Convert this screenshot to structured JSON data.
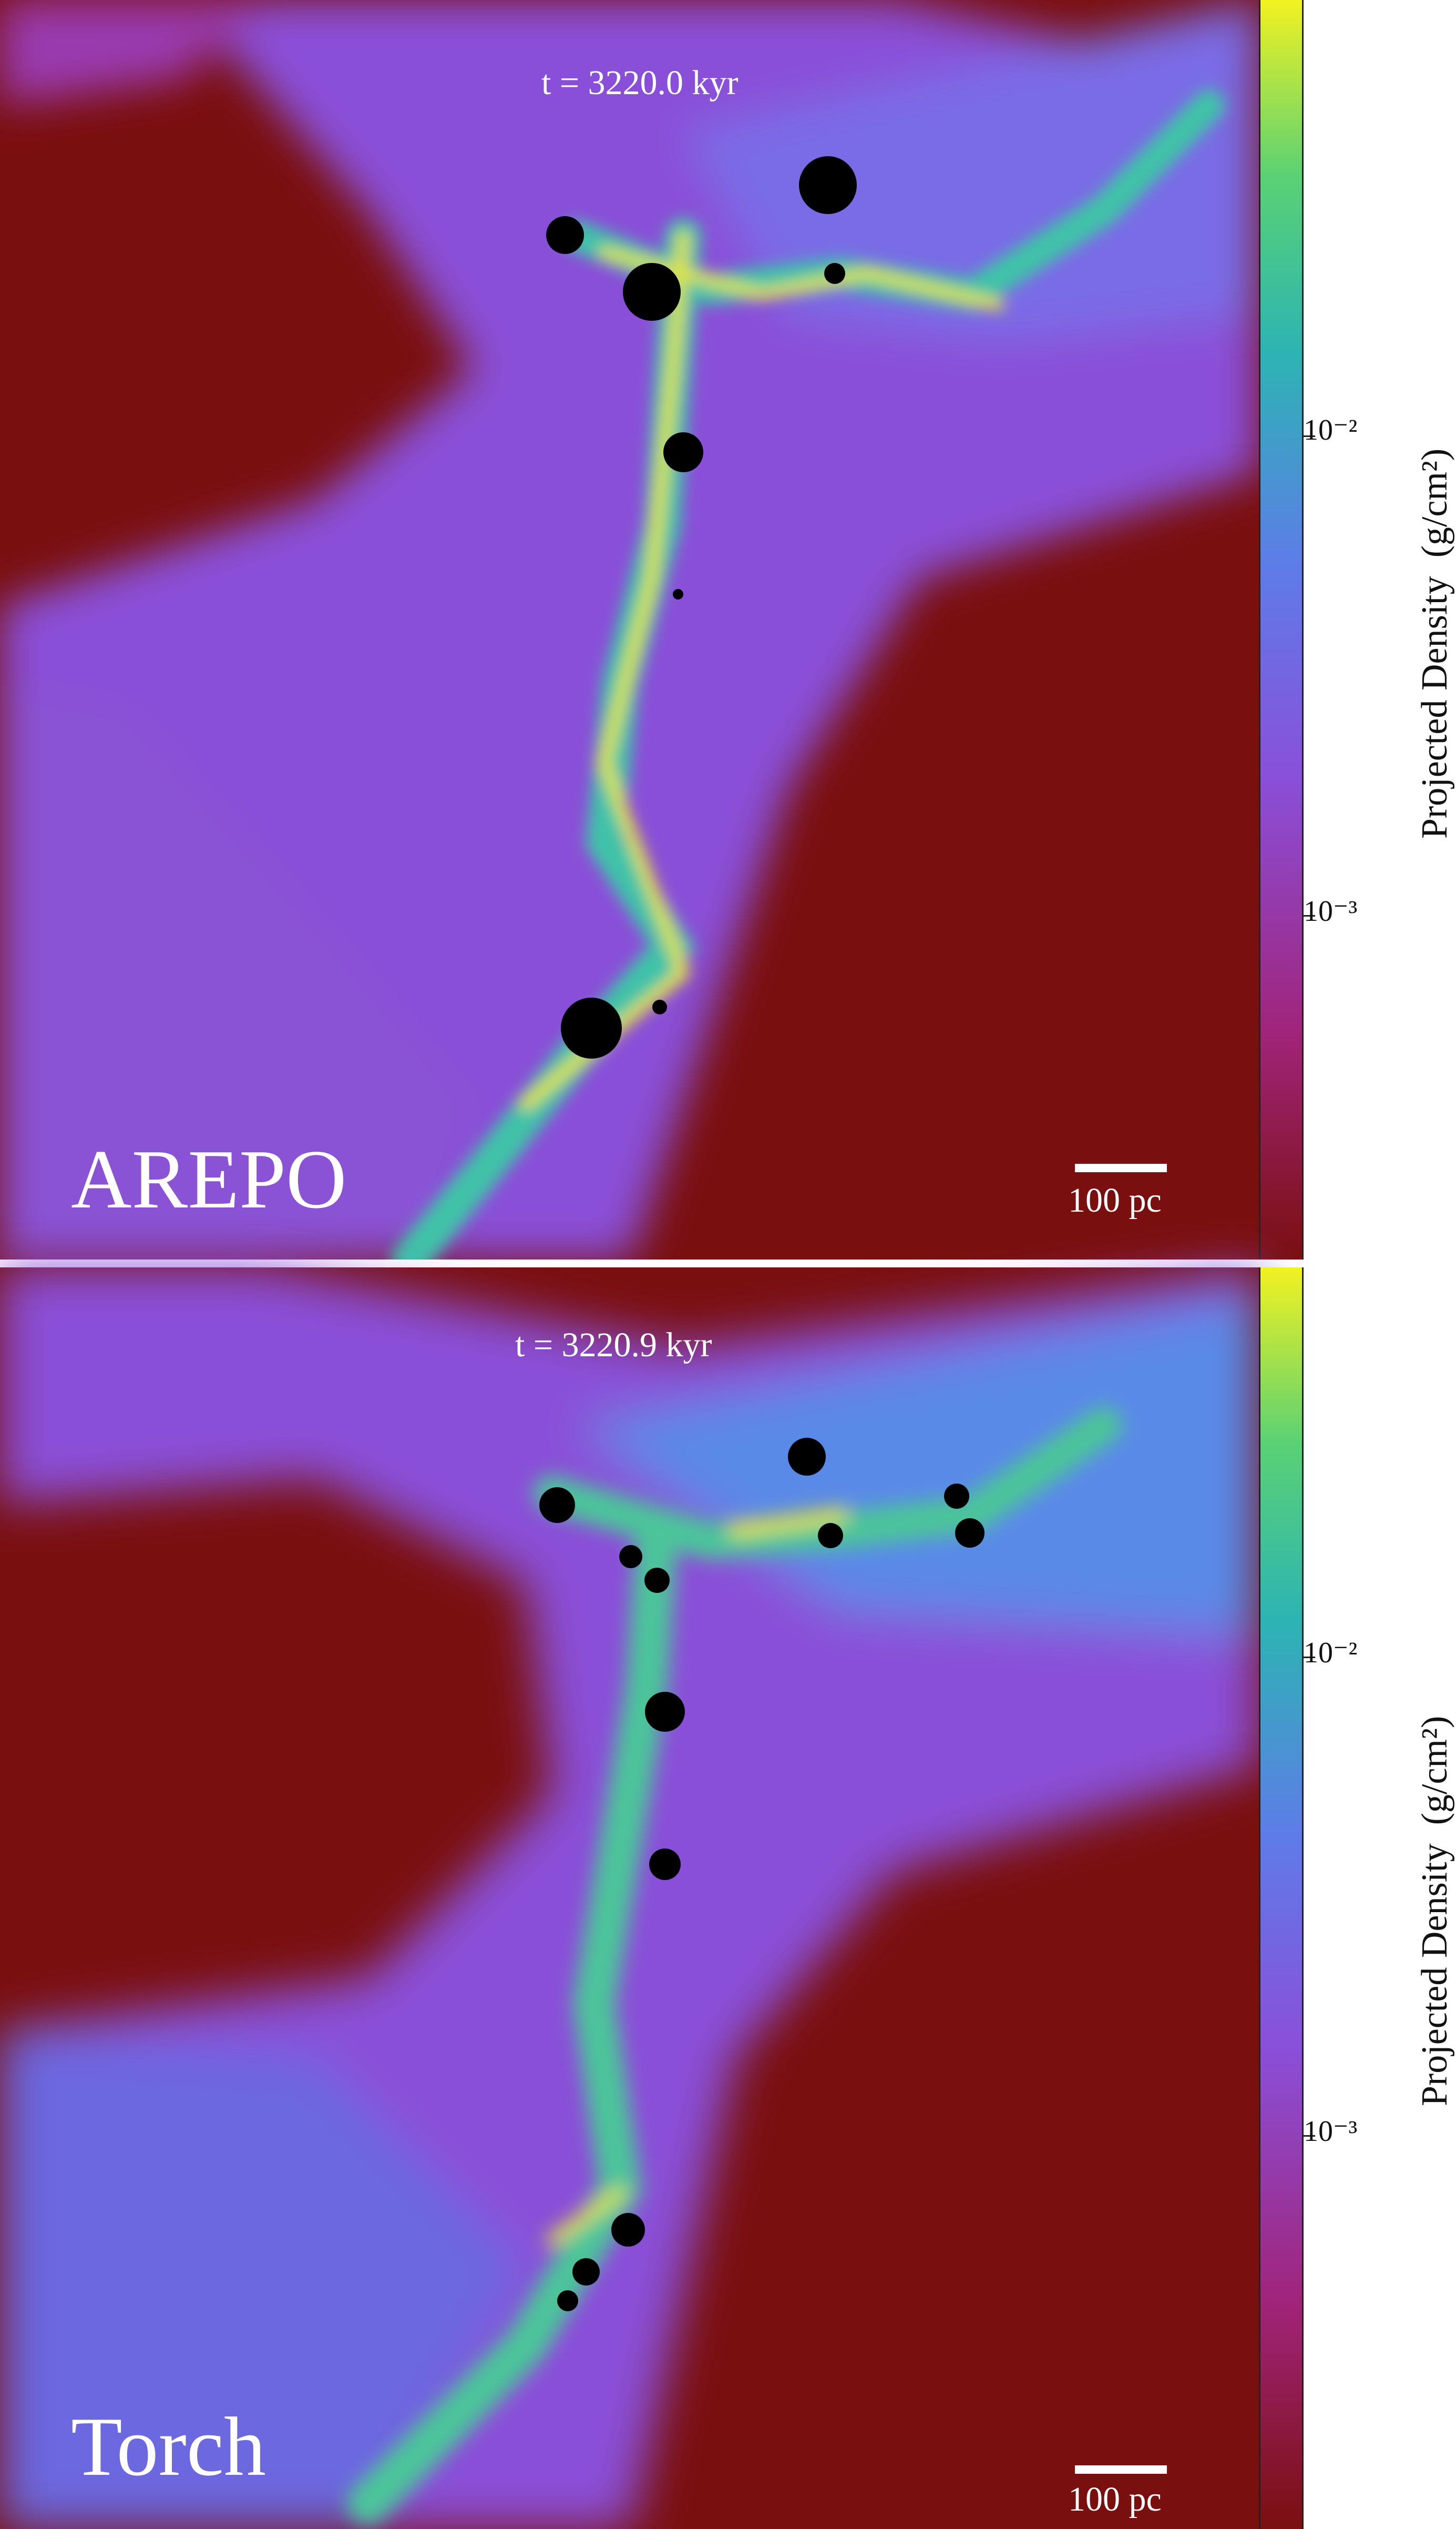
{
  "panels": [
    {
      "simulation": "AREPO",
      "time_label": "t = 3220.0 kyr",
      "scalebar_label": "100 pc",
      "colorbar": {
        "label": "Projected Density",
        "unit": "(g/cm²)",
        "ticks": [
          "10⁻²",
          "10⁻³"
        ],
        "colors": [
          "#7a0f0f",
          "#a0247a",
          "#8a4fd8",
          "#5e7ce8",
          "#2cb4b3",
          "#5ad174",
          "#f2f221"
        ]
      }
    },
    {
      "simulation": "Torch",
      "time_label": "t = 3220.9 kyr",
      "scalebar_label": "100 pc",
      "colorbar": {
        "label": "Projected Density",
        "unit": "(g/cm²)",
        "ticks": [
          "10⁻²",
          "10⁻³"
        ],
        "colors": [
          "#7a0f0f",
          "#a0247a",
          "#8a4fd8",
          "#5e7ce8",
          "#2cb4b3",
          "#5ad174",
          "#f2f221"
        ]
      }
    }
  ]
}
